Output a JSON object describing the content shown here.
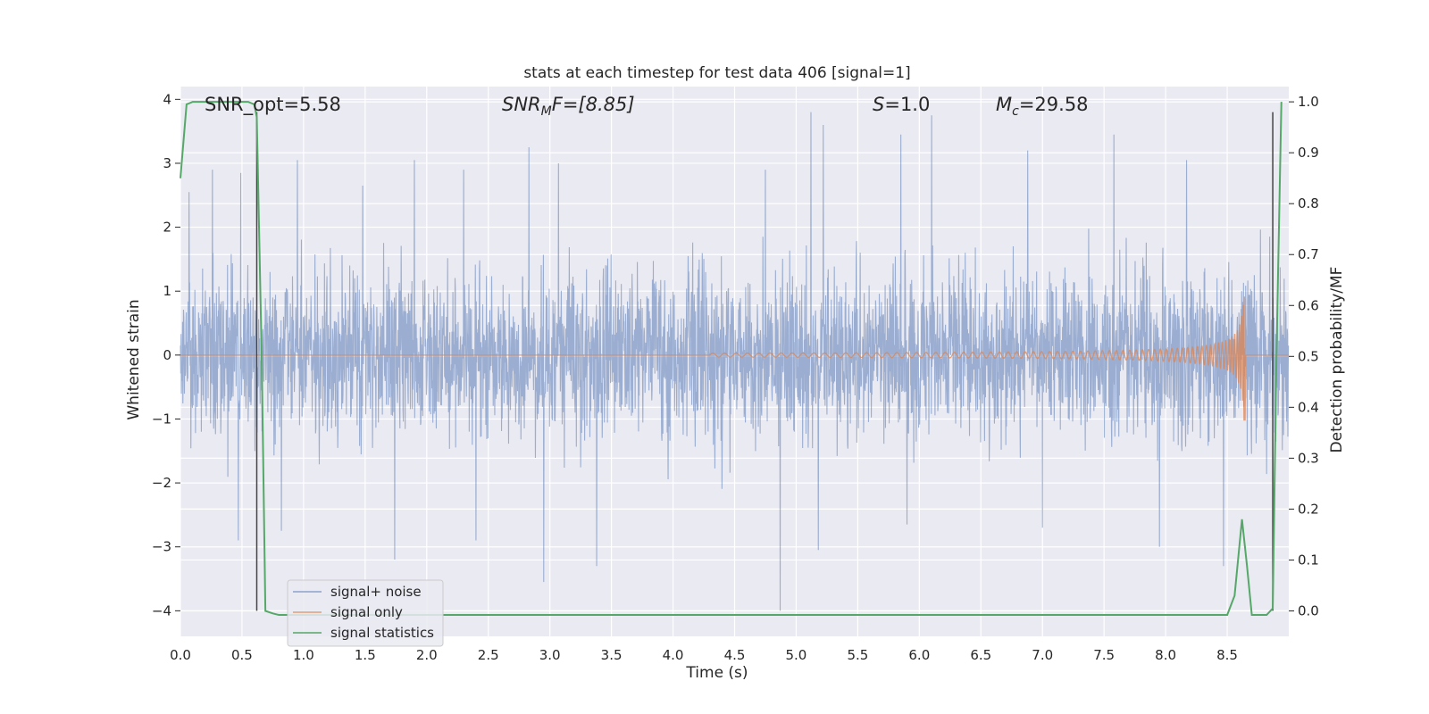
{
  "chart_data": {
    "type": "line",
    "title": "stats at each timestep for test data 406 [signal=1]",
    "xlabel": "Time (s)",
    "ylabel_left": "Whitened strain",
    "ylabel_right": "Detection probability/MF",
    "xlim": [
      0.0,
      9.0
    ],
    "ylim_left": [
      -4.4,
      4.2
    ],
    "ylim_right": [
      -0.05,
      1.03
    ],
    "x_ticks": [
      "0.0",
      "0.5",
      "1.0",
      "1.5",
      "2.0",
      "2.5",
      "3.0",
      "3.5",
      "4.0",
      "4.5",
      "5.0",
      "5.5",
      "6.0",
      "6.5",
      "7.0",
      "7.5",
      "8.0",
      "8.5"
    ],
    "y_left_ticks": [
      "4",
      "3",
      "2",
      "1",
      "0",
      "−1",
      "−2",
      "−3",
      "−4"
    ],
    "y_right_ticks": [
      "1.0",
      "0.9",
      "0.8",
      "0.7",
      "0.6",
      "0.5",
      "0.4",
      "0.3",
      "0.2",
      "0.1",
      "0.0"
    ],
    "grid": true,
    "legend_placement": "lower-left",
    "annotations": {
      "snr_opt": "SNR_opt=5.58",
      "snr_mf_main": "SNR",
      "snr_mf_sub": "M",
      "snr_mf_rest": "F=[8.85]",
      "s_main": "S",
      "s_rest": "=1.0",
      "mc_main": "M",
      "mc_sub": "c",
      "mc_rest": "=29.58"
    },
    "colors": {
      "background": "#eaeaf2",
      "grid": "#ffffff",
      "noise": "#4c72b0",
      "signal": "#dd8452",
      "statistics": "#55a868",
      "marker": "#444444"
    },
    "series": [
      {
        "name": "signal+ noise",
        "description_values": "dense whitened strain noise, amplitude roughly within -4 to +3.8",
        "envelope_typical": 1.45,
        "peaks": [
          {
            "t": 0.07,
            "v": 2.55
          },
          {
            "t": 0.26,
            "v": 2.9
          },
          {
            "t": 0.49,
            "v": 2.85
          },
          {
            "t": 0.95,
            "v": 3.05
          },
          {
            "t": 1.48,
            "v": 2.65
          },
          {
            "t": 1.9,
            "v": 3.05
          },
          {
            "t": 2.3,
            "v": 2.9
          },
          {
            "t": 2.83,
            "v": 3.25
          },
          {
            "t": 3.07,
            "v": 3.0
          },
          {
            "t": 4.75,
            "v": 2.9
          },
          {
            "t": 5.12,
            "v": 3.8
          },
          {
            "t": 5.22,
            "v": 3.6
          },
          {
            "t": 5.85,
            "v": 3.45
          },
          {
            "t": 6.1,
            "v": 3.75
          },
          {
            "t": 6.88,
            "v": 3.2
          },
          {
            "t": 7.58,
            "v": 3.45
          },
          {
            "t": 8.17,
            "v": 3.05
          }
        ],
        "troughs": [
          {
            "t": 0.47,
            "v": -2.9
          },
          {
            "t": 0.82,
            "v": -2.75
          },
          {
            "t": 1.74,
            "v": -3.2
          },
          {
            "t": 2.4,
            "v": -2.9
          },
          {
            "t": 2.95,
            "v": -3.55
          },
          {
            "t": 3.38,
            "v": -3.3
          },
          {
            "t": 4.87,
            "v": -4.0
          },
          {
            "t": 5.18,
            "v": -3.05
          },
          {
            "t": 5.9,
            "v": -2.65
          },
          {
            "t": 7.0,
            "v": -2.7
          },
          {
            "t": 7.95,
            "v": -3.0
          },
          {
            "t": 8.47,
            "v": -3.3
          }
        ]
      },
      {
        "name": "signal only",
        "chirp_start": 4.3,
        "chirp_end": 8.65,
        "amplitude_start": 0.03,
        "amplitude_peak": 1.1
      },
      {
        "name": "signal statistics",
        "axis": "right",
        "points": [
          [
            0.0,
            0.85
          ],
          [
            0.05,
            0.995
          ],
          [
            0.1,
            1.0
          ],
          [
            0.2,
            1.0
          ],
          [
            0.3,
            1.0
          ],
          [
            0.4,
            1.0
          ],
          [
            0.5,
            1.0
          ],
          [
            0.55,
            1.0
          ],
          [
            0.6,
            0.995
          ],
          [
            0.62,
            0.97
          ],
          [
            0.66,
            0.5
          ],
          [
            0.69,
            0.0
          ],
          [
            0.75,
            -0.005
          ],
          [
            0.8,
            -0.008
          ],
          [
            1.0,
            -0.008
          ],
          [
            2.0,
            -0.008
          ],
          [
            3.0,
            -0.008
          ],
          [
            4.0,
            -0.008
          ],
          [
            5.0,
            -0.008
          ],
          [
            6.0,
            -0.008
          ],
          [
            7.0,
            -0.008
          ],
          [
            8.0,
            -0.008
          ],
          [
            8.5,
            -0.008
          ],
          [
            8.56,
            0.03
          ],
          [
            8.62,
            0.18
          ],
          [
            8.66,
            0.09
          ],
          [
            8.7,
            -0.008
          ],
          [
            8.75,
            -0.008
          ],
          [
            8.82,
            -0.008
          ],
          [
            8.87,
            0.005
          ],
          [
            8.9,
            0.5
          ],
          [
            8.94,
            1.0
          ]
        ]
      }
    ],
    "vertical_markers": [
      {
        "t": 0.62,
        "from": -4.0,
        "to": 3.8
      },
      {
        "t": 8.87,
        "from": -4.0,
        "to": 3.8
      }
    ],
    "legend": [
      "signal+ noise",
      "signal only",
      "signal statistics"
    ]
  }
}
